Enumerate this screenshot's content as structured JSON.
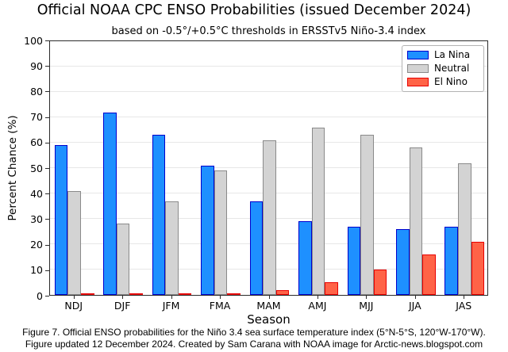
{
  "title": "Official NOAA CPC ENSO Probabilities (issued December 2024)",
  "subtitle": "based on -0.5°/+0.5°C thresholds in ERSSTv5 Niño-3.4 index",
  "chart_data": {
    "type": "bar",
    "categories": [
      "NDJ",
      "DJF",
      "JFM",
      "FMA",
      "MAM",
      "AMJ",
      "MJJ",
      "JJA",
      "JAS"
    ],
    "series": [
      {
        "name": "La Nina",
        "color": "#1E90FF",
        "border": "#0000CD",
        "values": [
          59,
          72,
          63,
          51,
          37,
          29,
          27,
          26,
          27
        ]
      },
      {
        "name": "Neutral",
        "color": "#D3D3D3",
        "border": "#8A8A8A",
        "values": [
          41,
          28,
          37,
          49,
          61,
          66,
          63,
          58,
          52
        ]
      },
      {
        "name": "El Nino",
        "color": "#FF6347",
        "border": "#E80000",
        "values": [
          0,
          0,
          0,
          0,
          2,
          5,
          10,
          16,
          21
        ]
      }
    ],
    "xlabel": "Season",
    "ylabel": "Percent Chance (%)",
    "ylim": [
      0,
      100
    ],
    "ytick_step": 10,
    "grid": true,
    "legend_position": "top-right"
  },
  "caption": {
    "line1": "Figure 7. Official ENSO probabilities for the Niño 3.4 sea surface temperature index (5°N-5°S, 120°W-170°W).",
    "line2": "Figure updated 12 December 2024. Created by Sam Carana with NOAA image for Arctic-news.blogspot.com"
  }
}
